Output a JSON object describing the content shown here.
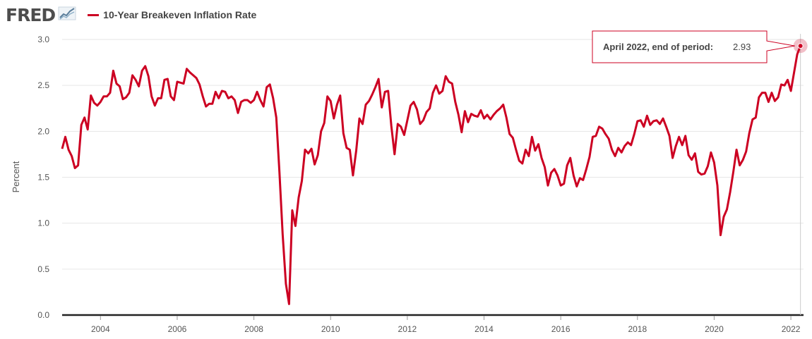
{
  "header": {
    "logo": "FRED",
    "logo_icon": "chart-trend-icon",
    "legend_label": "10-Year Breakeven Inflation Rate",
    "legend_color": "#cc0022"
  },
  "tooltip": {
    "title": "April 2022, end of period:",
    "value": "2.93"
  },
  "chart_data": {
    "type": "line",
    "title": "",
    "xlabel": "",
    "ylabel": "Percent",
    "ylim": [
      0,
      3.0
    ],
    "xlim": [
      2003.0,
      2022.33
    ],
    "yticks": [
      "0.0",
      "0.5",
      "1.0",
      "1.5",
      "2.0",
      "2.5",
      "3.0"
    ],
    "xticks": [
      "2004",
      "2006",
      "2008",
      "2010",
      "2012",
      "2014",
      "2016",
      "2018",
      "2020",
      "2022"
    ],
    "grid": true,
    "series": [
      {
        "name": "10-Year Breakeven Inflation Rate",
        "color": "#cc0022",
        "frequency": "monthly, end of period",
        "start": "2003-01",
        "values": [
          1.81,
          1.94,
          1.8,
          1.73,
          1.6,
          1.63,
          2.07,
          2.15,
          2.02,
          2.39,
          2.31,
          2.28,
          2.32,
          2.38,
          2.38,
          2.42,
          2.66,
          2.52,
          2.49,
          2.35,
          2.37,
          2.42,
          2.61,
          2.56,
          2.49,
          2.66,
          2.71,
          2.6,
          2.38,
          2.28,
          2.36,
          2.36,
          2.56,
          2.57,
          2.38,
          2.34,
          2.54,
          2.53,
          2.52,
          2.68,
          2.64,
          2.61,
          2.58,
          2.51,
          2.38,
          2.27,
          2.3,
          2.3,
          2.43,
          2.36,
          2.44,
          2.43,
          2.36,
          2.38,
          2.34,
          2.2,
          2.32,
          2.34,
          2.34,
          2.31,
          2.34,
          2.43,
          2.34,
          2.27,
          2.48,
          2.51,
          2.36,
          2.15,
          1.55,
          0.88,
          0.34,
          0.12,
          1.14,
          0.97,
          1.28,
          1.46,
          1.8,
          1.76,
          1.81,
          1.64,
          1.74,
          2.0,
          2.09,
          2.38,
          2.33,
          2.14,
          2.29,
          2.39,
          1.98,
          1.82,
          1.8,
          1.52,
          1.79,
          2.14,
          2.08,
          2.29,
          2.33,
          2.4,
          2.48,
          2.57,
          2.26,
          2.43,
          2.44,
          2.06,
          1.75,
          2.08,
          2.05,
          1.96,
          2.12,
          2.28,
          2.32,
          2.24,
          2.08,
          2.12,
          2.21,
          2.25,
          2.42,
          2.5,
          2.41,
          2.44,
          2.6,
          2.54,
          2.52,
          2.32,
          2.18,
          1.99,
          2.22,
          2.1,
          2.19,
          2.17,
          2.16,
          2.23,
          2.14,
          2.18,
          2.13,
          2.18,
          2.22,
          2.25,
          2.29,
          2.15,
          1.97,
          1.93,
          1.8,
          1.68,
          1.65,
          1.8,
          1.73,
          1.94,
          1.79,
          1.86,
          1.71,
          1.61,
          1.41,
          1.55,
          1.59,
          1.52,
          1.41,
          1.43,
          1.63,
          1.71,
          1.52,
          1.4,
          1.49,
          1.47,
          1.59,
          1.72,
          1.94,
          1.95,
          2.05,
          2.03,
          1.97,
          1.92,
          1.8,
          1.73,
          1.82,
          1.77,
          1.84,
          1.88,
          1.85,
          1.97,
          2.11,
          2.12,
          2.05,
          2.17,
          2.07,
          2.11,
          2.12,
          2.08,
          2.14,
          2.05,
          1.95,
          1.71,
          1.84,
          1.94,
          1.85,
          1.95,
          1.74,
          1.69,
          1.76,
          1.56,
          1.53,
          1.54,
          1.62,
          1.77,
          1.66,
          1.41,
          0.87,
          1.07,
          1.15,
          1.34,
          1.56,
          1.8,
          1.63,
          1.69,
          1.78,
          1.98,
          2.13,
          2.15,
          2.37,
          2.42,
          2.42,
          2.32,
          2.42,
          2.33,
          2.37,
          2.51,
          2.5,
          2.56,
          2.44,
          2.64,
          2.84,
          2.93
        ]
      }
    ]
  }
}
